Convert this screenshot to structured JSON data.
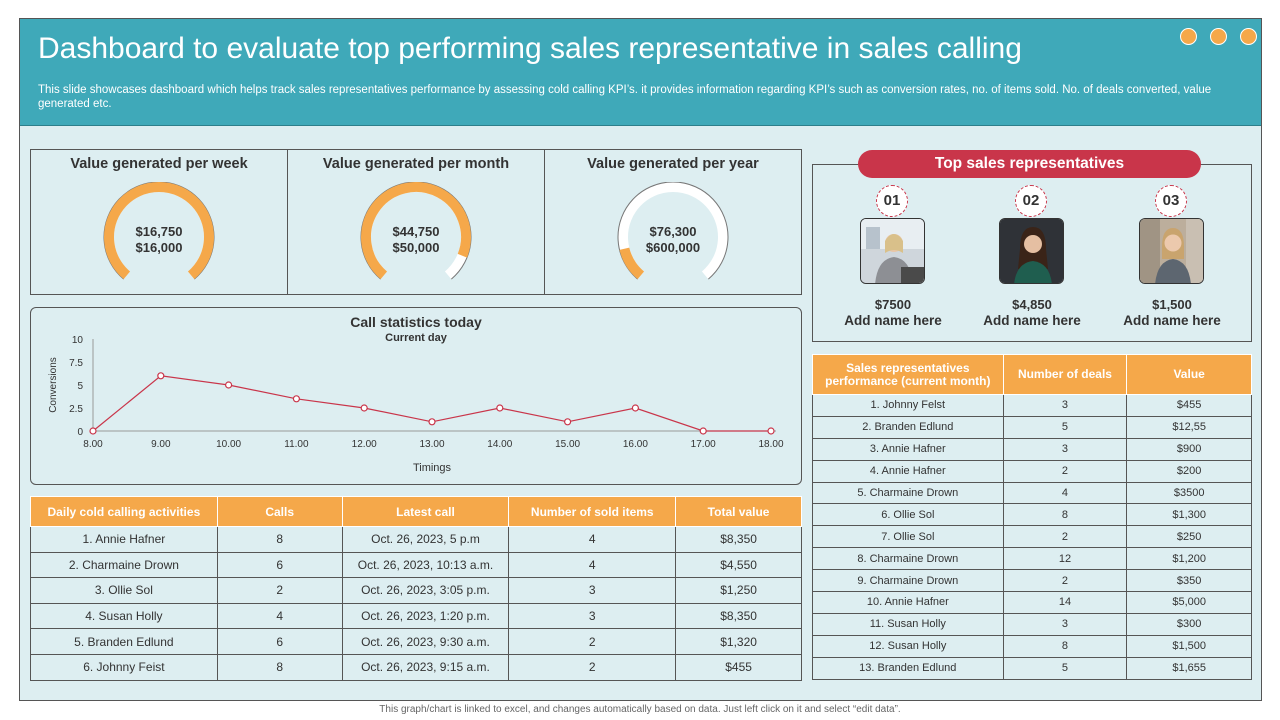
{
  "header": {
    "title": "Dashboard to evaluate top performing sales representative in sales calling",
    "subtitle": "This slide showcases dashboard which helps track sales representatives performance by assessing cold calling KPI’s. it provides information regarding KPI’s such as conversion rates, no. of items sold. No. of deals converted, value generated etc."
  },
  "gauges": [
    {
      "title": "Value generated per week",
      "value": "$16,750",
      "target": "$16,000",
      "fraction": 1.0
    },
    {
      "title": "Value generated per month",
      "value": "$44,750",
      "target": "$50,000",
      "fraction": 0.9
    },
    {
      "title": "Value generated per year",
      "value": "$76,300",
      "target": "$600,000",
      "fraction": 0.13
    }
  ],
  "call_stats": {
    "title": "Call statistics today",
    "subtitle": "Current day",
    "xlabel": "Timings",
    "ylabel": "Conversions"
  },
  "chart_data": {
    "type": "line",
    "title": "Call statistics today",
    "subtitle": "Current day",
    "xlabel": "Timings",
    "ylabel": "Conversions",
    "categories": [
      "8.00",
      "9.00",
      "10.00",
      "11.00",
      "12.00",
      "13.00",
      "14.00",
      "15.00",
      "16.00",
      "17.00",
      "18.00"
    ],
    "values": [
      0,
      6,
      5,
      3.5,
      2.5,
      1,
      2.5,
      1,
      2.5,
      0,
      0
    ],
    "yticks": [
      "0",
      "2.5",
      "5",
      "7.5",
      "10"
    ],
    "ylim": [
      0,
      10
    ],
    "grid": false,
    "color": "#c9354a"
  },
  "daily": {
    "headers": [
      "Daily cold calling activities",
      "Calls",
      "Latest call",
      "Number of sold items",
      "Total value"
    ],
    "rows": [
      [
        "1. Annie Hafner",
        "8",
        "Oct. 26, 2023, 5 p.m",
        "4",
        "$8,350"
      ],
      [
        "2. Charmaine Drown",
        "6",
        "Oct. 26, 2023, 10:13 a.m.",
        "4",
        "$4,550"
      ],
      [
        "3. Ollie Sol",
        "2",
        "Oct. 26, 2023, 3:05 p.m.",
        "3",
        "$1,250"
      ],
      [
        "4. Susan Holly",
        "4",
        "Oct. 26, 2023, 1:20 p.m.",
        "3",
        "$8,350"
      ],
      [
        "5. Branden Edlund",
        "6",
        "Oct. 26, 2023, 9:30 a.m.",
        "2",
        "$1,320"
      ],
      [
        "6. Johnny Feist",
        "8",
        "Oct. 26, 2023, 9:15 a.m.",
        "2",
        "$455"
      ]
    ]
  },
  "top_reps": {
    "title": "Top sales representatives",
    "reps": [
      {
        "rank": "01",
        "value": "$7500",
        "name": "Add name here"
      },
      {
        "rank": "02",
        "value": "$4,850",
        "name": "Add name here"
      },
      {
        "rank": "03",
        "value": "$1,500",
        "name": "Add name here"
      }
    ]
  },
  "perf": {
    "headers": [
      "Sales representatives performance (current month)",
      "Number of deals",
      "Value"
    ],
    "rows": [
      [
        "1. Johnny Felst",
        "3",
        "$455"
      ],
      [
        "2. Branden Edlund",
        "5",
        "$12,55"
      ],
      [
        "3. Annie Hafner",
        "3",
        "$900"
      ],
      [
        "4. Annie Hafner",
        "2",
        "$200"
      ],
      [
        "5. Charmaine Drown",
        "4",
        "$3500"
      ],
      [
        "6. Ollie Sol",
        "8",
        "$1,300"
      ],
      [
        "7. Ollie Sol",
        "2",
        "$250"
      ],
      [
        "8. Charmaine Drown",
        "12",
        "$1,200"
      ],
      [
        "9. Charmaine Drown",
        "2",
        "$350"
      ],
      [
        "10. Annie Hafner",
        "14",
        "$5,000"
      ],
      [
        "11. Susan Holly",
        "3",
        "$300"
      ],
      [
        "12. Susan Holly",
        "8",
        "$1,500"
      ],
      [
        "13. Branden Edlund",
        "5",
        "$1,655"
      ]
    ]
  },
  "footer": "This graph/chart is linked to excel, and changes automatically based on data. Just left click on it and select “edit data”.",
  "colors": {
    "teal": "#3fa9b9",
    "orange": "#f5a84a",
    "red": "#c9354a",
    "panel": "#ddeef1"
  }
}
